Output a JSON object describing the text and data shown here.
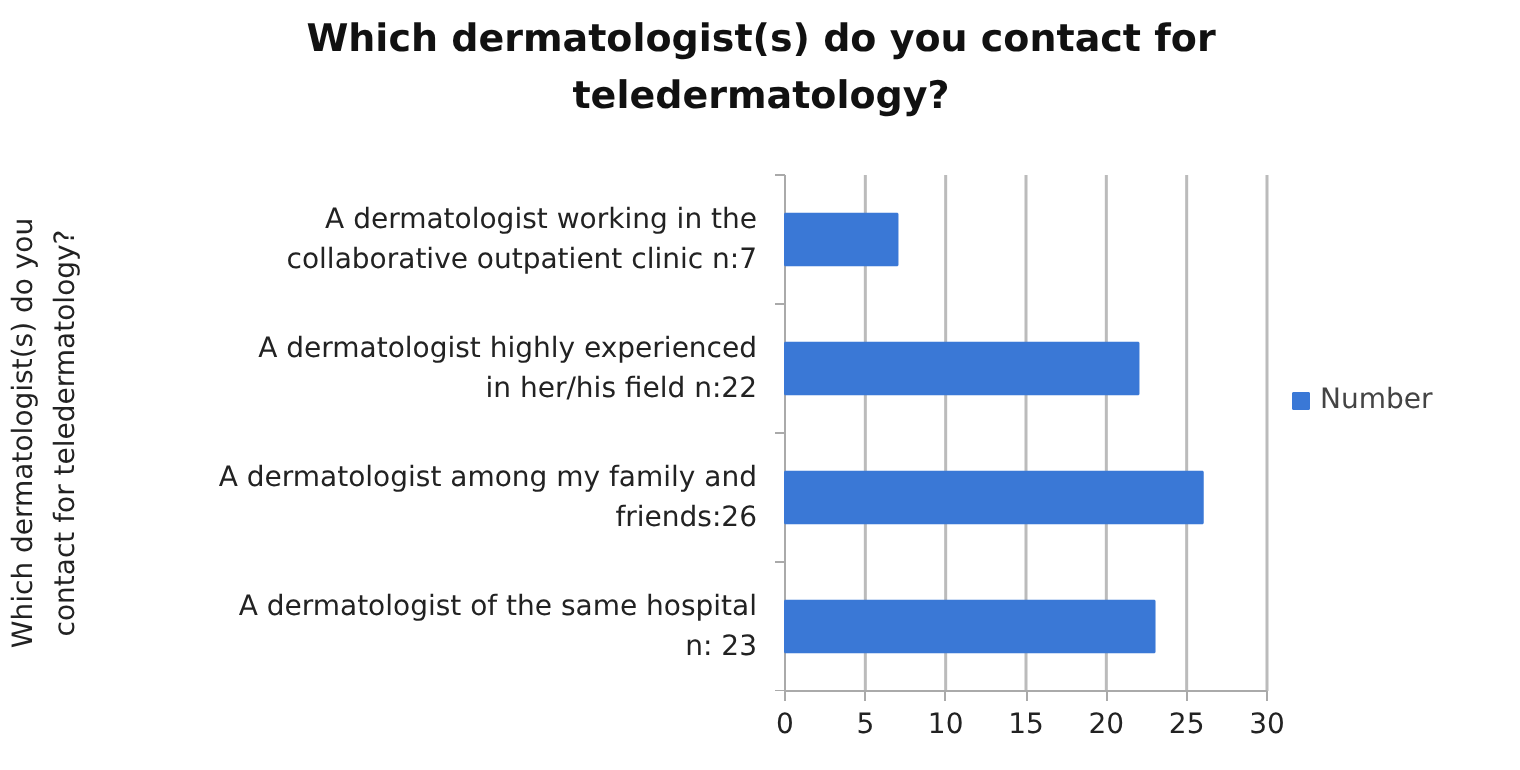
{
  "chart_data": {
    "type": "bar",
    "orientation": "horizontal",
    "title": "Which dermatologist(s) do you contact for teledermatology?",
    "ylabel": "Which dermatologist(s) do you contact for teledermatology?",
    "categories": [
      "A dermatologist working in the collaborative outpatient clinic n:7",
      "A dermatologist highly experienced in her/his field n:22",
      "A dermatologist among my family and friends:26",
      "A dermatologist of the same hospital n: 23"
    ],
    "series": [
      {
        "name": "Number",
        "color": "#3a78d6",
        "values": [
          7,
          22,
          26,
          23
        ]
      }
    ],
    "xlim": [
      0,
      30
    ],
    "xticks": [
      0,
      5,
      10,
      15,
      20,
      25,
      30
    ],
    "grid": "x",
    "legend": "right"
  }
}
